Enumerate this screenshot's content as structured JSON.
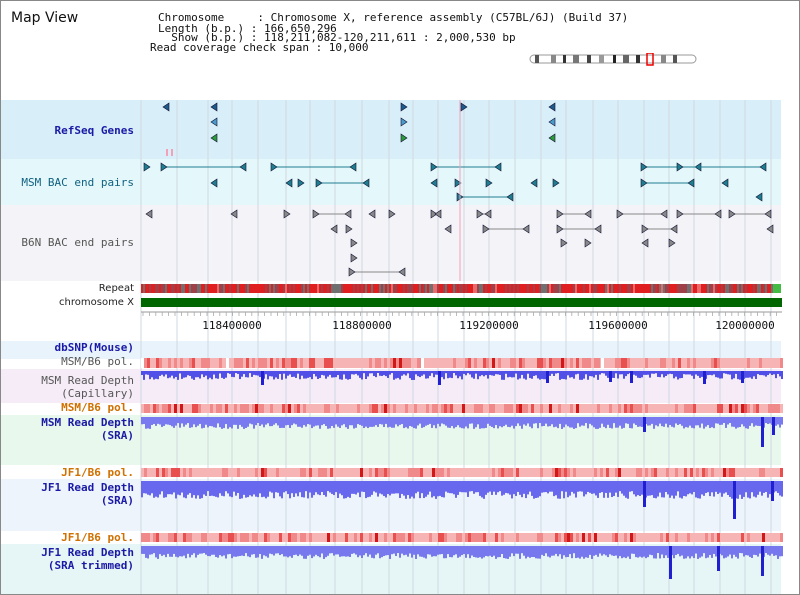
{
  "view_title": "Map View",
  "header": {
    "line1": "Chromosome     : Chromosome X, reference assembly (C57BL/6J) (Build 37)",
    "line2": "Length (b.p.) : 166,650,296",
    "line3": "  Show (b.p.) : 118,211,082-120,211,611 : 2,000,530 bp",
    "line4": "Read coverage check span : 10,000"
  },
  "tracks": {
    "refseq": "RefSeq Genes",
    "msm_bac": "MSM BAC end pairs",
    "b6n_bac": "B6N BAC end pairs",
    "repeat": "Repeat",
    "chromosome": "chromosome X",
    "dbsnp": "dbSNP(Mouse)",
    "msm_b6_pol_1": "MSM/B6 pol.",
    "msm_depth_cap_1": "MSM Read Depth",
    "msm_depth_cap_2": "(Capillary)",
    "msm_b6_pol_2": "MSM/B6 pol.",
    "msm_depth_sra_1": "MSM Read Depth",
    "msm_depth_sra_2": "(SRA)",
    "jf1_b6_pol_1": "JF1/B6 pol.",
    "jf1_depth_sra_1": "JF1 Read Depth",
    "jf1_depth_sra_2": "(SRA)",
    "jf1_b6_pol_2": "JF1/B6 pol.",
    "jf1_depth_trim_1": "JF1 Read Depth",
    "jf1_depth_trim_2": "(SRA trimmed)"
  },
  "axis": {
    "ticks": [
      "118400000",
      "118800000",
      "119200000",
      "119600000",
      "120000000"
    ]
  },
  "colors": {
    "refseq_bg": "#d8eef9",
    "msm_bac_bg": "#e4f8fb",
    "b6n_bac_bg": "#f4f4f8",
    "chromosome_bar": "#006600",
    "depth_bar": "#4646e8",
    "pol_low": "#f6b4b4",
    "pol_high": "#e51c1c"
  }
}
